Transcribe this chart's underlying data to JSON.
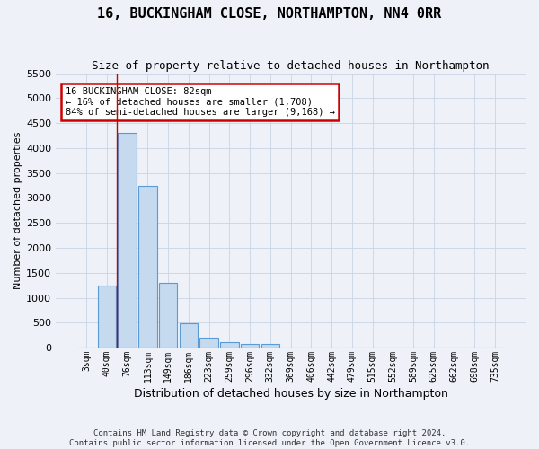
{
  "title": "16, BUCKINGHAM CLOSE, NORTHAMPTON, NN4 0RR",
  "subtitle": "Size of property relative to detached houses in Northampton",
  "xlabel": "Distribution of detached houses by size in Northampton",
  "ylabel": "Number of detached properties",
  "footnote1": "Contains HM Land Registry data © Crown copyright and database right 2024.",
  "footnote2": "Contains public sector information licensed under the Open Government Licence v3.0.",
  "bar_labels": [
    "3sqm",
    "40sqm",
    "76sqm",
    "113sqm",
    "149sqm",
    "186sqm",
    "223sqm",
    "259sqm",
    "296sqm",
    "332sqm",
    "369sqm",
    "406sqm",
    "442sqm",
    "479sqm",
    "515sqm",
    "552sqm",
    "589sqm",
    "625sqm",
    "662sqm",
    "698sqm",
    "735sqm"
  ],
  "bar_values": [
    0,
    1250,
    4300,
    3250,
    1300,
    480,
    200,
    110,
    80,
    70,
    0,
    0,
    0,
    0,
    0,
    0,
    0,
    0,
    0,
    0,
    0
  ],
  "bar_color": "#c5d9ef",
  "bar_edge_color": "#5b9bd5",
  "grid_color": "#c8d4e4",
  "background_color": "#eef2f8",
  "red_line_index": 1.5,
  "annotation_text": "16 BUCKINGHAM CLOSE: 82sqm\n← 16% of detached houses are smaller (1,708)\n84% of semi-detached houses are larger (9,168) →",
  "annotation_box_facecolor": "#ffffff",
  "annotation_box_edgecolor": "#cc0000",
  "red_line_color": "#cc0000",
  "ylim_max": 5500,
  "ytick_step": 500,
  "title_fontsize": 11,
  "subtitle_fontsize": 9,
  "xlabel_fontsize": 9,
  "ylabel_fontsize": 8,
  "tick_fontsize": 7,
  "footnote_fontsize": 6.5
}
